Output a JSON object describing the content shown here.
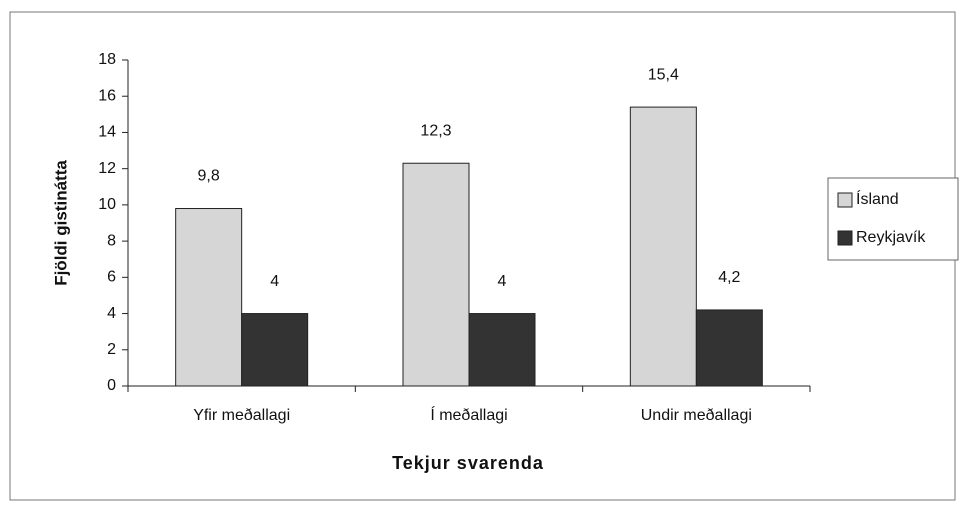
{
  "chart_data": {
    "type": "bar",
    "x_label": "Tekjur svarenda",
    "y_label": "Fjöldi gistinátta",
    "categories": [
      "Yfir meðallagi",
      "Í meðallagi",
      "Undir meðallagi"
    ],
    "series": [
      {
        "name": "Ísland",
        "color": "#d6d6d6",
        "values": [
          9.8,
          12.3,
          15.4
        ],
        "value_labels": [
          "9,8",
          "12,3",
          "15,4"
        ]
      },
      {
        "name": "Reykjavík",
        "color": "#333333",
        "values": [
          4,
          4,
          4.2
        ],
        "value_labels": [
          "4",
          "4",
          "4,2"
        ]
      }
    ],
    "ylim": [
      0,
      18
    ],
    "yticks": [
      0,
      2,
      4,
      6,
      8,
      10,
      12,
      14,
      16,
      18
    ],
    "grid": false,
    "legend": "right"
  }
}
